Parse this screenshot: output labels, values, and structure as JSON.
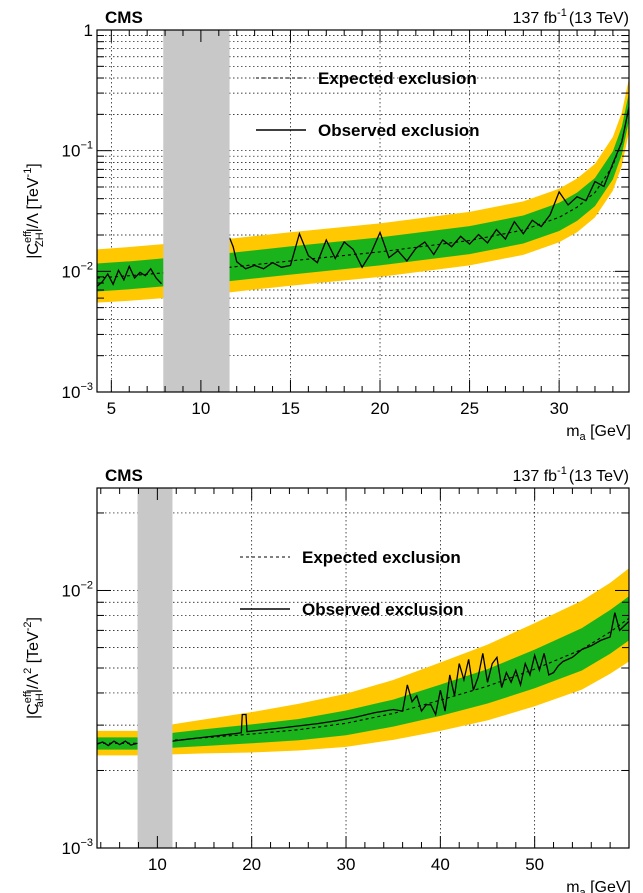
{
  "chart_data": [
    {
      "type": "line",
      "experiment": "CMS",
      "luminosity": "137 fb",
      "luminosity_sup": "-1",
      "energy": "(13 TeV)",
      "ylabel_main": "|C",
      "ylabel_sup": "eff",
      "ylabel_sub": "ZH",
      "ylabel_rest": "|/Λ [TeV",
      "ylabel_unit_sup": "-1",
      "ylabel_end": "]",
      "xlabel_main": "m",
      "xlabel_sub": "a",
      "xlabel_rest": " [GeV]",
      "xlim": [
        4.2,
        33.9
      ],
      "ylim": [
        0.001,
        1
      ],
      "ylog": true,
      "grid": true,
      "excluded_region": [
        7.9,
        11.6
      ],
      "xticks": [
        {
          "v": 5,
          "label": "5"
        },
        {
          "v": 10,
          "label": "10"
        },
        {
          "v": 15,
          "label": "15"
        },
        {
          "v": 20,
          "label": "20"
        },
        {
          "v": 25,
          "label": "25"
        },
        {
          "v": 30,
          "label": "30"
        }
      ],
      "yticks": [
        {
          "v": 0.001,
          "base": "10",
          "exp": "−3"
        },
        {
          "v": 0.01,
          "base": "10",
          "exp": "−2"
        },
        {
          "v": 0.1,
          "base": "10",
          "exp": "−1"
        },
        {
          "v": 1,
          "base": "1",
          "exp": ""
        }
      ],
      "legend": [
        {
          "label": "Expected exclusion",
          "style": "dashed"
        },
        {
          "label": "Observed exclusion",
          "style": "solid"
        }
      ],
      "legend_position": "top-right",
      "colors": {
        "band_1sigma": "#1bb31b",
        "band_2sigma": "#ffc800",
        "excluded": "#c8c8c8"
      },
      "expected": {
        "x": [
          4.2,
          6,
          7.9,
          11.6,
          15,
          20,
          25,
          28,
          30,
          31,
          32,
          33,
          33.5,
          33.9
        ],
        "y": [
          0.0088,
          0.0092,
          0.0097,
          0.0108,
          0.0122,
          0.0145,
          0.018,
          0.022,
          0.028,
          0.034,
          0.045,
          0.075,
          0.12,
          0.23
        ]
      },
      "band_1sigma": {
        "x": [
          4.2,
          6,
          7.9,
          11.6,
          15,
          20,
          25,
          28,
          30,
          31,
          32,
          33,
          33.5,
          33.9
        ],
        "lo": [
          0.0068,
          0.0071,
          0.0075,
          0.0083,
          0.0094,
          0.0112,
          0.0139,
          0.017,
          0.0216,
          0.0262,
          0.0347,
          0.058,
          0.093,
          0.178
        ],
        "hi": [
          0.0116,
          0.0121,
          0.0128,
          0.0142,
          0.0161,
          0.0191,
          0.0237,
          0.029,
          0.037,
          0.0449,
          0.0594,
          0.099,
          0.158,
          0.304
        ]
      },
      "band_2sigma": {
        "x": [
          4.2,
          6,
          7.9,
          11.6,
          15,
          20,
          25,
          28,
          30,
          31,
          32,
          33,
          33.5,
          33.9
        ],
        "lo": [
          0.0055,
          0.0057,
          0.006,
          0.0067,
          0.0076,
          0.009,
          0.0112,
          0.0137,
          0.0174,
          0.0211,
          0.028,
          0.0466,
          0.0746,
          0.143
        ],
        "hi": [
          0.0152,
          0.0159,
          0.0168,
          0.0186,
          0.0211,
          0.025,
          0.0311,
          0.038,
          0.0484,
          0.0588,
          0.0778,
          0.13,
          0.207,
          0.397
        ]
      },
      "observed": {
        "x": [
          4.2,
          4.5,
          4.8,
          5.1,
          5.4,
          5.7,
          6.0,
          6.3,
          6.6,
          6.9,
          7.2,
          7.5,
          7.8,
          11.6,
          11.8,
          12.0,
          12.5,
          13.0,
          13.5,
          14.0,
          14.5,
          15.0,
          15.5,
          16.0,
          16.5,
          17.0,
          17.5,
          18.0,
          18.5,
          19.0,
          19.5,
          20.0,
          20.5,
          21.0,
          21.5,
          22.0,
          22.5,
          23.0,
          23.5,
          24.0,
          24.5,
          25.0,
          25.5,
          26.0,
          26.5,
          27.0,
          27.5,
          28.0,
          28.5,
          29.0,
          29.5,
          30.0,
          30.5,
          31.0,
          31.5,
          32.0,
          32.5,
          33.0,
          33.5,
          33.9
        ],
        "y": [
          0.0075,
          0.0082,
          0.0095,
          0.0078,
          0.0102,
          0.0085,
          0.011,
          0.0088,
          0.0098,
          0.0092,
          0.0105,
          0.0088,
          0.0079,
          0.019,
          0.016,
          0.012,
          0.0105,
          0.0112,
          0.0105,
          0.0118,
          0.0108,
          0.0112,
          0.0205,
          0.0135,
          0.0118,
          0.0182,
          0.0128,
          0.0175,
          0.0152,
          0.0108,
          0.0142,
          0.021,
          0.013,
          0.0148,
          0.0122,
          0.0155,
          0.0175,
          0.0138,
          0.0182,
          0.016,
          0.0195,
          0.0168,
          0.0202,
          0.0172,
          0.0222,
          0.0185,
          0.0258,
          0.0205,
          0.0265,
          0.0235,
          0.0295,
          0.0455,
          0.0355,
          0.0415,
          0.0385,
          0.0555,
          0.0505,
          0.0785,
          0.118,
          0.23
        ]
      }
    },
    {
      "type": "line",
      "experiment": "CMS",
      "luminosity": "137 fb",
      "luminosity_sup": "-1",
      "energy": "(13 TeV)",
      "ylabel_main": "|C",
      "ylabel_sup": "eff",
      "ylabel_sub": "aH",
      "ylabel_rest": "|/Λ",
      "ylabel_pow": "2",
      "ylabel_mid": " [TeV",
      "ylabel_unit_sup": "-2",
      "ylabel_end": "]",
      "xlabel_main": "m",
      "xlabel_sub": "a",
      "xlabel_rest": " [GeV]",
      "xlim": [
        3.6,
        60
      ],
      "ylim": [
        0.001,
        0.025
      ],
      "ylog": true,
      "grid": true,
      "excluded_region": [
        7.9,
        11.6
      ],
      "xticks": [
        {
          "v": 10,
          "label": "10"
        },
        {
          "v": 20,
          "label": "20"
        },
        {
          "v": 30,
          "label": "30"
        },
        {
          "v": 40,
          "label": "40"
        },
        {
          "v": 50,
          "label": "50"
        }
      ],
      "yticks": [
        {
          "v": 0.001,
          "base": "10",
          "exp": "−3"
        },
        {
          "v": 0.01,
          "base": "10",
          "exp": "−2"
        }
      ],
      "legend": [
        {
          "label": "Expected exclusion",
          "style": "dashed"
        },
        {
          "label": "Observed exclusion",
          "style": "solid"
        }
      ],
      "legend_position": "top-right",
      "colors": {
        "band_1sigma": "#1bb31b",
        "band_2sigma": "#ffc800",
        "excluded": "#c8c8c8"
      },
      "expected": {
        "x": [
          3.6,
          5,
          7.9,
          11.6,
          15,
          20,
          25,
          30,
          35,
          40,
          45,
          50,
          55,
          58,
          60
        ],
        "y": [
          0.00255,
          0.00255,
          0.00255,
          0.00262,
          0.00268,
          0.00277,
          0.00288,
          0.00305,
          0.00333,
          0.00375,
          0.00425,
          0.00495,
          0.0059,
          0.0069,
          0.0078
        ]
      },
      "band_1sigma": {
        "x": [
          3.6,
          5,
          7.9,
          11.6,
          15,
          20,
          25,
          30,
          35,
          40,
          45,
          50,
          55,
          58,
          60
        ],
        "lo": [
          0.00241,
          0.00241,
          0.00241,
          0.00245,
          0.00249,
          0.00255,
          0.00262,
          0.00274,
          0.00296,
          0.00326,
          0.00364,
          0.00417,
          0.00489,
          0.00568,
          0.0064
        ],
        "hi": [
          0.00269,
          0.00269,
          0.00269,
          0.0028,
          0.00289,
          0.00302,
          0.00317,
          0.00342,
          0.00377,
          0.00431,
          0.00495,
          0.00589,
          0.00714,
          0.0084,
          0.0095
        ]
      },
      "band_2sigma": {
        "x": [
          3.6,
          5,
          7.9,
          11.6,
          15,
          20,
          25,
          30,
          35,
          40,
          45,
          50,
          55,
          58,
          60
        ],
        "lo": [
          0.00229,
          0.00229,
          0.00229,
          0.00231,
          0.00233,
          0.00235,
          0.00239,
          0.00247,
          0.00263,
          0.00285,
          0.00313,
          0.00355,
          0.00412,
          0.00475,
          0.0053
        ],
        "hi": [
          0.00285,
          0.00285,
          0.00285,
          0.00302,
          0.00316,
          0.00337,
          0.00363,
          0.00397,
          0.00449,
          0.00525,
          0.00616,
          0.00747,
          0.00912,
          0.0107,
          0.0122
        ]
      },
      "observed": {
        "x": [
          3.6,
          4.2,
          4.8,
          5.4,
          6.0,
          6.6,
          7.2,
          7.9,
          11.6,
          13,
          14.5,
          16,
          17.5,
          18.9,
          19.0,
          19.4,
          19.5,
          21,
          23,
          25,
          27,
          29,
          31,
          33,
          35,
          36,
          36.5,
          37,
          37.5,
          38,
          38.5,
          39,
          39.5,
          40,
          40.5,
          41,
          41.5,
          42,
          42.5,
          43,
          43.5,
          44,
          44.5,
          45,
          45.5,
          46,
          46.5,
          47,
          47.5,
          48,
          48.5,
          49,
          49.5,
          50,
          50.5,
          51,
          51.5,
          52,
          52.5,
          53,
          54,
          55,
          56,
          57,
          58,
          58.5,
          59,
          60
        ],
        "y": [
          0.00253,
          0.00258,
          0.0025,
          0.0026,
          0.00252,
          0.0026,
          0.00251,
          0.00255,
          0.0026,
          0.00264,
          0.00268,
          0.00272,
          0.00276,
          0.0028,
          0.0033,
          0.0033,
          0.00283,
          0.00287,
          0.00292,
          0.00298,
          0.00304,
          0.00312,
          0.00322,
          0.00335,
          0.00345,
          0.0034,
          0.0043,
          0.0037,
          0.0039,
          0.0034,
          0.0036,
          0.0036,
          0.0033,
          0.0041,
          0.0034,
          0.0047,
          0.0039,
          0.0052,
          0.0045,
          0.0054,
          0.0041,
          0.0046,
          0.0057,
          0.0044,
          0.0052,
          0.0055,
          0.0042,
          0.0048,
          0.0044,
          0.0049,
          0.0043,
          0.0052,
          0.0047,
          0.0056,
          0.0049,
          0.0057,
          0.0047,
          0.0048,
          0.0051,
          0.0053,
          0.0055,
          0.0059,
          0.0061,
          0.0064,
          0.0066,
          0.0082,
          0.007,
          0.0076
        ]
      }
    }
  ]
}
